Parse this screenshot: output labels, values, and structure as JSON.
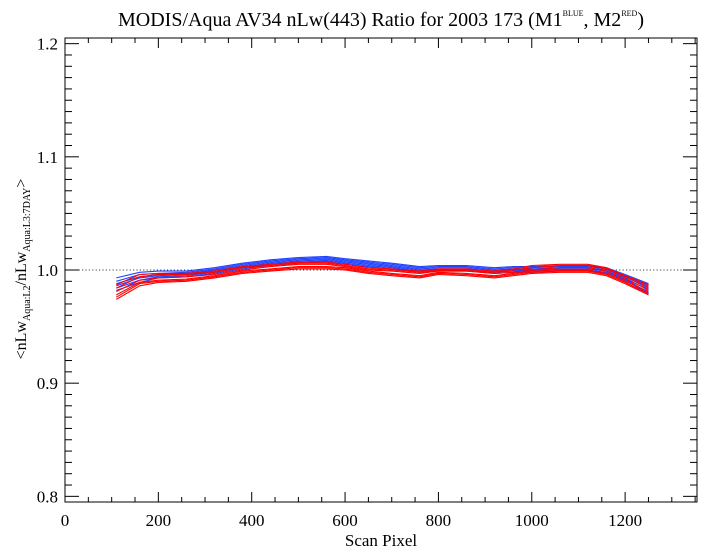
{
  "chart_data": {
    "type": "line",
    "title_parts": {
      "main": "MODIS/Aqua AV34 nLw(443) Ratio for 2003 173 (M1",
      "sup1": "BLUE",
      "mid": ", M2",
      "sup2": "RED",
      "end": ")"
    },
    "xlabel": "Scan Pixel",
    "ylabel_parts": {
      "a": "<nLw",
      "sub1": "Aqua:L2",
      "b": "/nLw",
      "sub2": "Aqua:L3:7DAY",
      "c": ">"
    },
    "xlim": [
      0,
      1354
    ],
    "ylim": [
      0.795,
      1.205
    ],
    "x_ticks": [
      "0",
      "200",
      "400",
      "600",
      "800",
      "1000",
      "1200"
    ],
    "y_ticks": [
      "0.8",
      "0.9",
      "1.0",
      "1.1",
      "1.2"
    ],
    "reference_line": 1.0,
    "series_colors": {
      "M1": "#2244ff",
      "M2": "#ff0000"
    },
    "x": [
      110,
      160,
      200,
      260,
      320,
      380,
      440,
      500,
      560,
      600,
      650,
      700,
      760,
      800,
      860,
      920,
      960,
      1000,
      1060,
      1120,
      1160,
      1200,
      1250
    ],
    "series": [
      {
        "group": "M1",
        "values": [
          0.993,
          0.998,
          0.999,
          0.999,
          1.002,
          1.006,
          1.009,
          1.011,
          1.012,
          1.01,
          1.008,
          1.006,
          1.003,
          1.004,
          1.004,
          1.002,
          1.003,
          1.003,
          1.004,
          1.004,
          1.002,
          0.996,
          0.988
        ]
      },
      {
        "group": "M1",
        "values": [
          0.99,
          0.996,
          0.997,
          0.998,
          1.001,
          1.005,
          1.008,
          1.01,
          1.011,
          1.009,
          1.007,
          1.005,
          1.002,
          1.003,
          1.003,
          1.001,
          1.002,
          1.002,
          1.003,
          1.003,
          1.001,
          0.995,
          0.986
        ]
      },
      {
        "group": "M1",
        "values": [
          0.988,
          0.994,
          0.996,
          0.997,
          1.0,
          1.004,
          1.007,
          1.009,
          1.01,
          1.008,
          1.006,
          1.004,
          1.001,
          1.002,
          1.002,
          1.0,
          1.001,
          1.001,
          1.002,
          1.002,
          1.0,
          0.994,
          0.984
        ]
      },
      {
        "group": "M1",
        "values": [
          0.986,
          0.993,
          0.995,
          0.996,
          0.999,
          1.003,
          1.006,
          1.008,
          1.009,
          1.007,
          1.005,
          1.003,
          1.0,
          1.001,
          1.001,
          0.999,
          1.0,
          1.0,
          1.001,
          1.001,
          0.999,
          0.993,
          0.982
        ]
      },
      {
        "group": "M1",
        "values": [
          0.984,
          0.991,
          0.994,
          0.995,
          0.998,
          1.002,
          1.005,
          1.007,
          1.008,
          1.006,
          1.004,
          1.002,
          0.999,
          1.0,
          1.0,
          0.998,
          0.999,
          0.999,
          1.0,
          1.0,
          0.998,
          0.992,
          0.98
        ]
      },
      {
        "group": "M1",
        "values": [
          0.982,
          0.989,
          0.993,
          0.994,
          0.997,
          1.001,
          1.004,
          1.006,
          1.007,
          1.005,
          1.003,
          1.001,
          0.998,
          0.999,
          0.999,
          0.997,
          0.998,
          0.998,
          0.999,
          0.999,
          0.997,
          0.991,
          0.979
        ]
      },
      {
        "group": "M2",
        "values": [
          0.987,
          0.996,
          0.997,
          0.997,
          0.999,
          1.003,
          1.005,
          1.007,
          1.007,
          1.005,
          1.002,
          1.001,
          0.999,
          1.001,
          1.001,
          0.999,
          1.001,
          1.004,
          1.005,
          1.005,
          1.002,
          0.995,
          0.987
        ]
      },
      {
        "group": "M2",
        "values": [
          0.984,
          0.994,
          0.996,
          0.996,
          0.998,
          1.002,
          1.004,
          1.006,
          1.006,
          1.004,
          1.001,
          1.0,
          0.998,
          1.0,
          1.0,
          0.998,
          1.0,
          1.002,
          1.004,
          1.004,
          1.001,
          0.994,
          0.985
        ]
      },
      {
        "group": "M2",
        "values": [
          0.981,
          0.991,
          0.993,
          0.994,
          0.996,
          1.0,
          1.003,
          1.005,
          1.005,
          1.003,
          1.0,
          0.999,
          0.997,
          0.999,
          0.999,
          0.997,
          0.998,
          1.0,
          1.002,
          1.002,
          0.999,
          0.992,
          0.983
        ]
      },
      {
        "group": "M2",
        "values": [
          0.978,
          0.989,
          0.991,
          0.992,
          0.995,
          0.999,
          1.001,
          1.003,
          1.003,
          1.002,
          0.999,
          0.997,
          0.995,
          0.998,
          0.997,
          0.995,
          0.997,
          0.999,
          1.0,
          1.0,
          0.997,
          0.99,
          0.981
        ]
      },
      {
        "group": "M2",
        "values": [
          0.976,
          0.988,
          0.99,
          0.991,
          0.994,
          0.998,
          1.0,
          1.002,
          1.002,
          1.001,
          0.998,
          0.996,
          0.994,
          0.997,
          0.996,
          0.994,
          0.996,
          0.998,
          0.999,
          0.999,
          0.996,
          0.989,
          0.979
        ]
      },
      {
        "group": "M2",
        "values": [
          0.974,
          0.986,
          0.989,
          0.99,
          0.993,
          0.997,
          0.999,
          1.001,
          1.001,
          1.0,
          0.997,
          0.995,
          0.993,
          0.996,
          0.995,
          0.993,
          0.995,
          0.997,
          0.998,
          0.998,
          0.995,
          0.988,
          0.978
        ]
      }
    ]
  }
}
